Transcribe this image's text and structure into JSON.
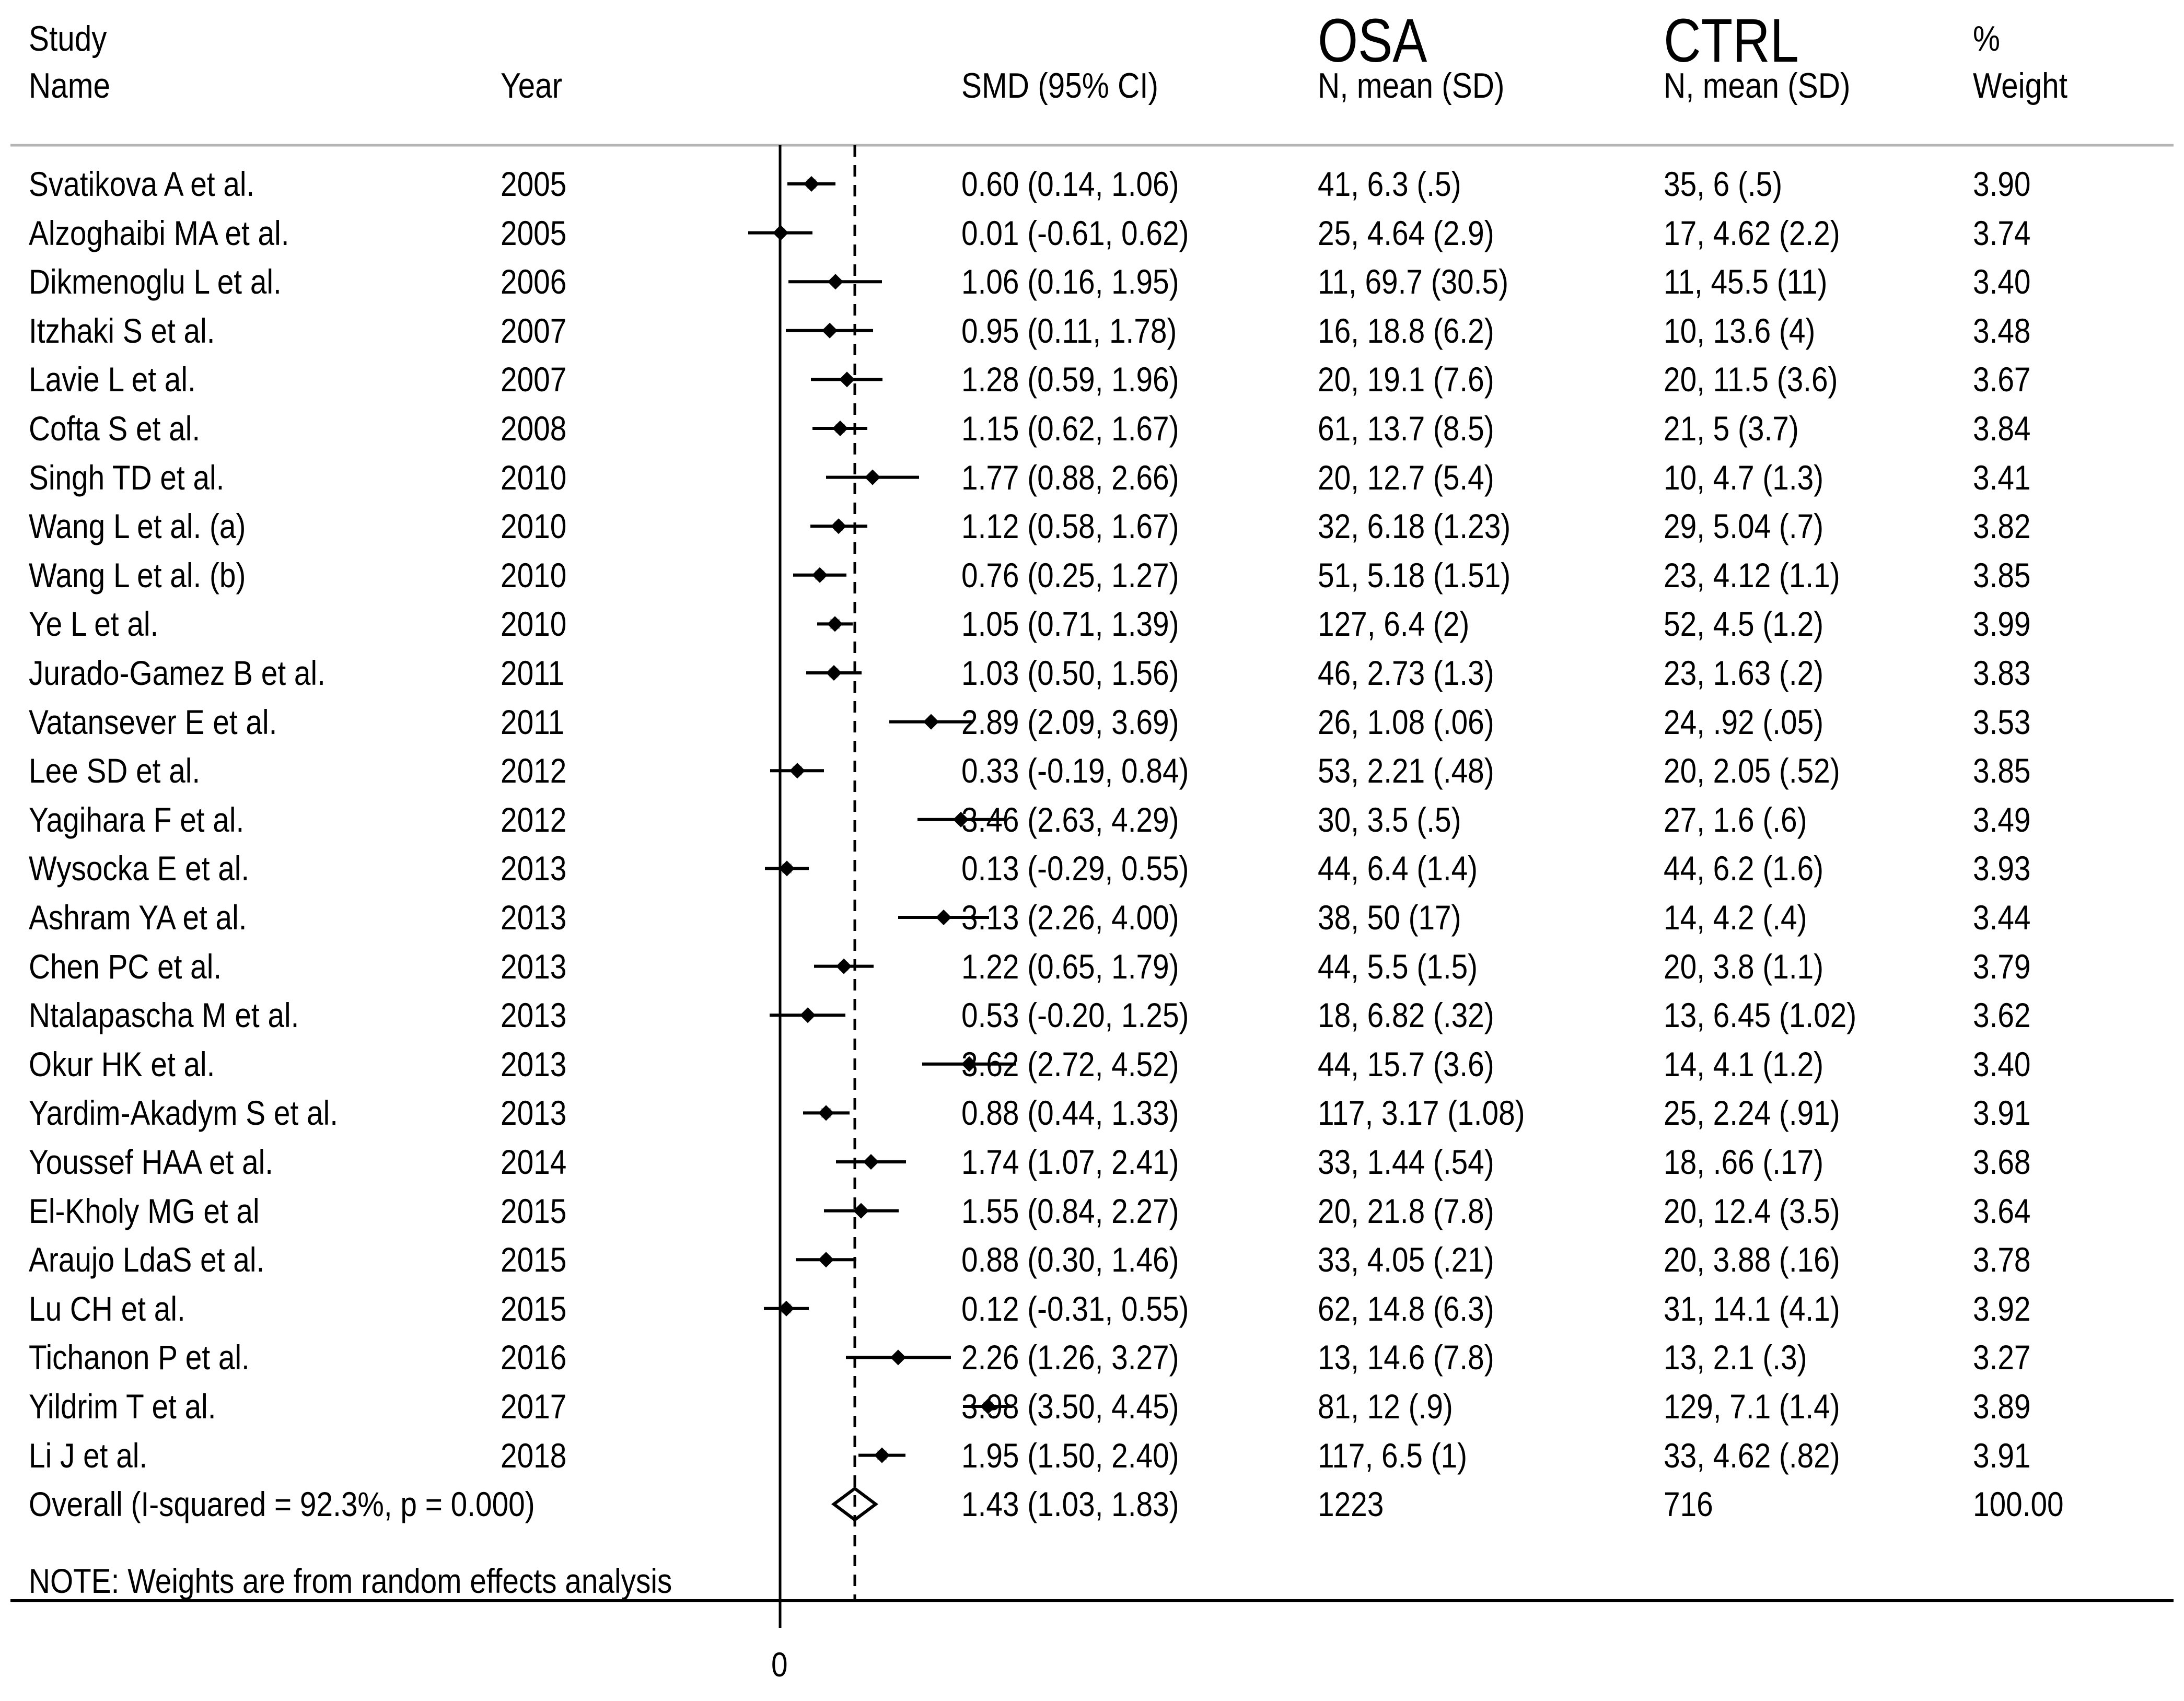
{
  "headers": {
    "study": "Study",
    "name": "Name",
    "year": "Year",
    "smd": "SMD (95% CI)",
    "osa_group": "OSA",
    "osa_sub": "N, mean (SD)",
    "ctrl_group": "CTRL",
    "ctrl_sub": "N, mean (SD)",
    "pct": "%",
    "weight": "Weight"
  },
  "note": "NOTE: Weights are from random effects analysis",
  "chart_data": {
    "type": "forest",
    "x_axis": {
      "ticks": [
        0
      ],
      "tick_labels": [
        "0"
      ],
      "null_line": 0
    },
    "x_range": [
      -0.05,
      4.6
    ],
    "overall_reference": 1.43,
    "rows": [
      {
        "name": "Svatikova A et al.",
        "year": "2005",
        "smd": 0.6,
        "lo": 0.14,
        "hi": 1.06,
        "ci_text": "0.60 (0.14, 1.06)",
        "osa": "41, 6.3 (.5)",
        "ctrl": "35, 6 (.5)",
        "weight": "3.90"
      },
      {
        "name": "Alzoghaibi MA et al.",
        "year": "2005",
        "smd": 0.01,
        "lo": -0.61,
        "hi": 0.62,
        "ci_text": "0.01 (-0.61, 0.62)",
        "osa": "25, 4.64 (2.9)",
        "ctrl": "17, 4.62 (2.2)",
        "weight": "3.74"
      },
      {
        "name": "Dikmenoglu L et al.",
        "year": "2006",
        "smd": 1.06,
        "lo": 0.16,
        "hi": 1.95,
        "ci_text": "1.06 (0.16, 1.95)",
        "osa": "11, 69.7 (30.5)",
        "ctrl": "11, 45.5 (11)",
        "weight": "3.40"
      },
      {
        "name": "Itzhaki S et al.",
        "year": "2007",
        "smd": 0.95,
        "lo": 0.11,
        "hi": 1.78,
        "ci_text": "0.95 (0.11, 1.78)",
        "osa": "16, 18.8 (6.2)",
        "ctrl": "10, 13.6 (4)",
        "weight": "3.48"
      },
      {
        "name": "Lavie L et al.",
        "year": "2007",
        "smd": 1.28,
        "lo": 0.59,
        "hi": 1.96,
        "ci_text": "1.28 (0.59, 1.96)",
        "osa": "20, 19.1 (7.6)",
        "ctrl": "20, 11.5 (3.6)",
        "weight": "3.67"
      },
      {
        "name": "Cofta S et al.",
        "year": "2008",
        "smd": 1.15,
        "lo": 0.62,
        "hi": 1.67,
        "ci_text": "1.15 (0.62, 1.67)",
        "osa": "61, 13.7 (8.5)",
        "ctrl": "21, 5 (3.7)",
        "weight": "3.84"
      },
      {
        "name": "Singh TD et al.",
        "year": "2010",
        "smd": 1.77,
        "lo": 0.88,
        "hi": 2.66,
        "ci_text": "1.77 (0.88, 2.66)",
        "osa": "20, 12.7 (5.4)",
        "ctrl": "10, 4.7 (1.3)",
        "weight": "3.41"
      },
      {
        "name": "Wang L et al. (a)",
        "year": "2010",
        "smd": 1.12,
        "lo": 0.58,
        "hi": 1.67,
        "ci_text": "1.12 (0.58, 1.67)",
        "osa": "32, 6.18 (1.23)",
        "ctrl": "29, 5.04 (.7)",
        "weight": "3.82"
      },
      {
        "name": "Wang L et al. (b)",
        "year": "2010",
        "smd": 0.76,
        "lo": 0.25,
        "hi": 1.27,
        "ci_text": "0.76 (0.25, 1.27)",
        "osa": "51, 5.18 (1.51)",
        "ctrl": "23, 4.12 (1.1)",
        "weight": "3.85"
      },
      {
        "name": "Ye L et al.",
        "year": "2010",
        "smd": 1.05,
        "lo": 0.71,
        "hi": 1.39,
        "ci_text": "1.05 (0.71, 1.39)",
        "osa": "127, 6.4 (2)",
        "ctrl": "52, 4.5 (1.2)",
        "weight": "3.99"
      },
      {
        "name": "Jurado-Gamez B et al.",
        "year": "2011",
        "smd": 1.03,
        "lo": 0.5,
        "hi": 1.56,
        "ci_text": "1.03 (0.50, 1.56)",
        "osa": "46, 2.73 (1.3)",
        "ctrl": "23, 1.63 (.2)",
        "weight": "3.83"
      },
      {
        "name": "Vatansever E et al.",
        "year": "2011",
        "smd": 2.89,
        "lo": 2.09,
        "hi": 3.69,
        "ci_text": "2.89 (2.09, 3.69)",
        "osa": "26, 1.08 (.06)",
        "ctrl": "24, .92 (.05)",
        "weight": "3.53"
      },
      {
        "name": "Lee  SD et al.",
        "year": "2012",
        "smd": 0.33,
        "lo": -0.19,
        "hi": 0.84,
        "ci_text": "0.33 (-0.19, 0.84)",
        "osa": "53, 2.21 (.48)",
        "ctrl": "20, 2.05 (.52)",
        "weight": "3.85"
      },
      {
        "name": "Yagihara F et al.",
        "year": "2012",
        "smd": 3.46,
        "lo": 2.63,
        "hi": 4.29,
        "ci_text": "3.46 (2.63, 4.29)",
        "osa": "30, 3.5 (.5)",
        "ctrl": "27, 1.6 (.6)",
        "weight": "3.49"
      },
      {
        "name": "Wysocka E et al.",
        "year": "2013",
        "smd": 0.13,
        "lo": -0.29,
        "hi": 0.55,
        "ci_text": "0.13 (-0.29, 0.55)",
        "osa": "44, 6.4 (1.4)",
        "ctrl": "44, 6.2 (1.6)",
        "weight": "3.93"
      },
      {
        "name": "Ashram YA et al.",
        "year": "2013",
        "smd": 3.13,
        "lo": 2.26,
        "hi": 4.0,
        "ci_text": "3.13 (2.26, 4.00)",
        "osa": "38, 50 (17)",
        "ctrl": "14, 4.2 (.4)",
        "weight": "3.44"
      },
      {
        "name": "Chen PC et al.",
        "year": "2013",
        "smd": 1.22,
        "lo": 0.65,
        "hi": 1.79,
        "ci_text": "1.22 (0.65, 1.79)",
        "osa": "44, 5.5 (1.5)",
        "ctrl": "20, 3.8 (1.1)",
        "weight": "3.79"
      },
      {
        "name": "Ntalapascha M et al.",
        "year": "2013",
        "smd": 0.53,
        "lo": -0.2,
        "hi": 1.25,
        "ci_text": "0.53 (-0.20, 1.25)",
        "osa": "18, 6.82 (.32)",
        "ctrl": "13, 6.45 (1.02)",
        "weight": "3.62"
      },
      {
        "name": "Okur HK et al.",
        "year": "2013",
        "smd": 3.62,
        "lo": 2.72,
        "hi": 4.52,
        "ci_text": "3.62 (2.72, 4.52)",
        "osa": "44, 15.7 (3.6)",
        "ctrl": "14, 4.1 (1.2)",
        "weight": "3.40"
      },
      {
        "name": "Yardim-Akadym S et al.",
        "year": "2013",
        "smd": 0.88,
        "lo": 0.44,
        "hi": 1.33,
        "ci_text": "0.88 (0.44, 1.33)",
        "osa": "117, 3.17 (1.08)",
        "ctrl": "25, 2.24 (.91)",
        "weight": "3.91"
      },
      {
        "name": "Youssef HAA et al.",
        "year": "2014",
        "smd": 1.74,
        "lo": 1.07,
        "hi": 2.41,
        "ci_text": "1.74 (1.07, 2.41)",
        "osa": "33, 1.44 (.54)",
        "ctrl": "18, .66 (.17)",
        "weight": "3.68"
      },
      {
        "name": "El-Kholy MG et al",
        "year": "2015",
        "smd": 1.55,
        "lo": 0.84,
        "hi": 2.27,
        "ci_text": "1.55 (0.84, 2.27)",
        "osa": "20, 21.8 (7.8)",
        "ctrl": "20, 12.4 (3.5)",
        "weight": "3.64"
      },
      {
        "name": "Araujo LdaS et al.",
        "year": "2015",
        "smd": 0.88,
        "lo": 0.3,
        "hi": 1.46,
        "ci_text": "0.88 (0.30, 1.46)",
        "osa": "33, 4.05 (.21)",
        "ctrl": "20, 3.88 (.16)",
        "weight": "3.78"
      },
      {
        "name": "Lu CH et al.",
        "year": "2015",
        "smd": 0.12,
        "lo": -0.31,
        "hi": 0.55,
        "ci_text": "0.12 (-0.31, 0.55)",
        "osa": "62, 14.8 (6.3)",
        "ctrl": "31, 14.1 (4.1)",
        "weight": "3.92"
      },
      {
        "name": "Tichanon P et al.",
        "year": "2016",
        "smd": 2.26,
        "lo": 1.26,
        "hi": 3.27,
        "ci_text": "2.26 (1.26, 3.27)",
        "osa": "13, 14.6 (7.8)",
        "ctrl": "13, 2.1 (.3)",
        "weight": "3.27"
      },
      {
        "name": "Yildrim T et al.",
        "year": "2017",
        "smd": 3.98,
        "lo": 3.5,
        "hi": 4.45,
        "ci_text": "3.98 (3.50, 4.45)",
        "osa": "81, 12 (.9)",
        "ctrl": "129, 7.1 (1.4)",
        "weight": "3.89"
      },
      {
        "name": "Li J et al.",
        "year": "2018",
        "smd": 1.95,
        "lo": 1.5,
        "hi": 2.4,
        "ci_text": "1.95 (1.50, 2.40)",
        "osa": "117, 6.5 (1)",
        "ctrl": "33, 4.62 (.82)",
        "weight": "3.91"
      }
    ],
    "overall": {
      "label": "Overall  (I-squared = 92.3%, p = 0.000)",
      "smd": 1.43,
      "lo": 1.03,
      "hi": 1.83,
      "ci_text": "1.43 (1.03, 1.83)",
      "osa": "1223",
      "ctrl": "716",
      "weight": "100.00"
    }
  }
}
